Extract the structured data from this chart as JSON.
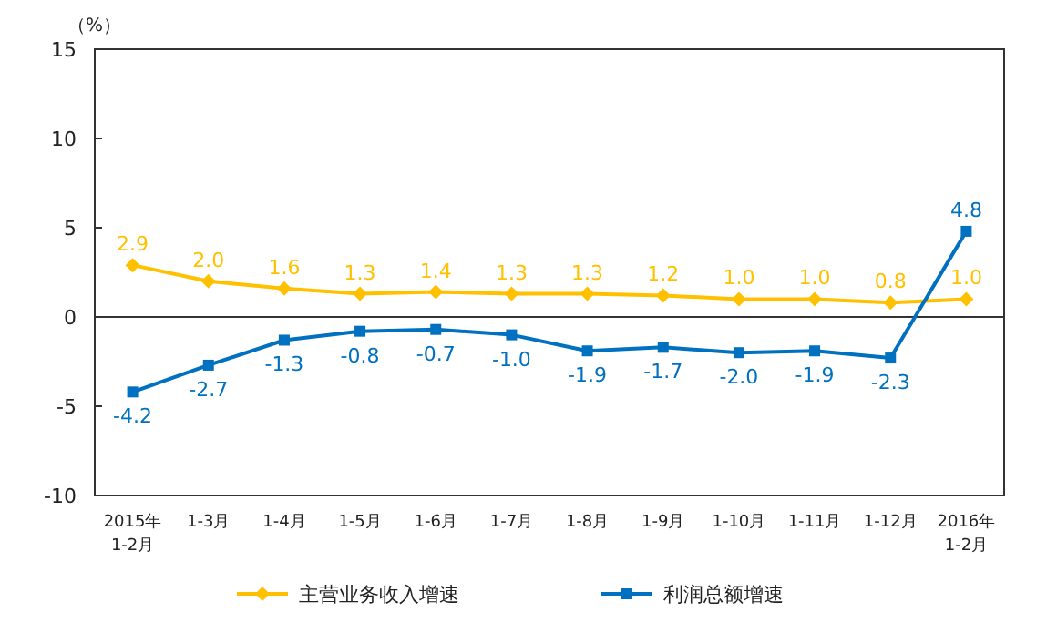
{
  "chart_data": {
    "type": "line",
    "ylabel": "（%）",
    "categories": [
      "2015年\n1-2月",
      "1-3月",
      "1-4月",
      "1-5月",
      "1-6月",
      "1-7月",
      "1-8月",
      "1-9月",
      "1-10月",
      "1-11月",
      "1-12月",
      "2016年\n1-2月"
    ],
    "series": [
      {
        "name": "主营业务收入增速",
        "color": "#ffc000",
        "marker": "diamond",
        "values": [
          2.9,
          2.0,
          1.6,
          1.3,
          1.4,
          1.3,
          1.3,
          1.2,
          1.0,
          1.0,
          0.8,
          1.0
        ],
        "value_labels": [
          "2.9",
          "2.0",
          "1.6",
          "1.3",
          "1.4",
          "1.3",
          "1.3",
          "1.2",
          "1.0",
          "1.0",
          "0.8",
          "1.0"
        ]
      },
      {
        "name": "利润总额增速",
        "color": "#0070c0",
        "marker": "square",
        "values": [
          -4.2,
          -2.7,
          -1.3,
          -0.8,
          -0.7,
          -1.0,
          -1.9,
          -1.7,
          -2.0,
          -1.9,
          -2.3,
          4.8
        ],
        "value_labels": [
          "-4.2",
          "-2.7",
          "-1.3",
          "-0.8",
          "-0.7",
          "-1.0",
          "-1.9",
          "-1.7",
          "-2.0",
          "-1.9",
          "-2.3",
          "4.8"
        ]
      }
    ],
    "ylim": [
      -10,
      15
    ],
    "yticks": [
      -10,
      -5,
      0,
      5,
      10,
      15
    ],
    "legend": "bottom"
  }
}
